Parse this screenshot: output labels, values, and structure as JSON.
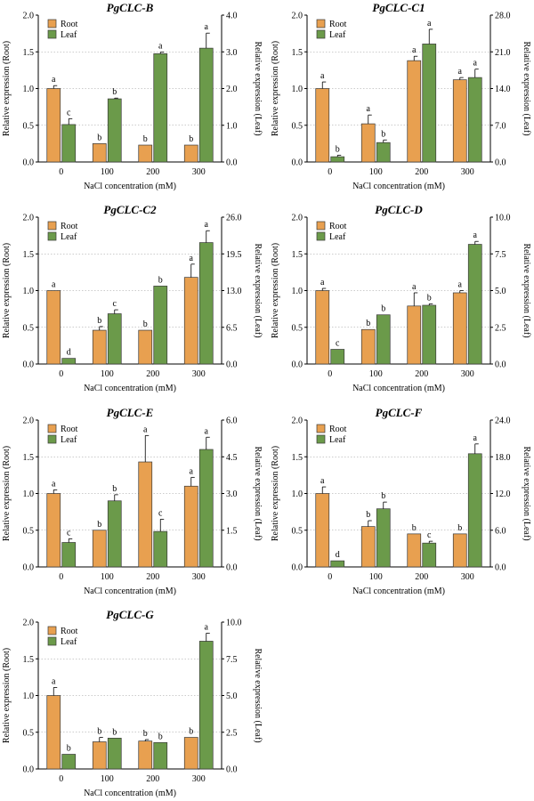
{
  "chart_data": [
    {
      "type": "bar",
      "title": "PgCLC-B",
      "categories": [
        "0",
        "100",
        "200",
        "300"
      ],
      "xlabel": "NaCl concentration (mM)",
      "ylabel_left": "Relative expression (Root)",
      "ylabel_right": "Relative expression (Leaf)",
      "left_ticks": [
        "0.0",
        "0.5",
        "1.0",
        "1.5",
        "2.0"
      ],
      "right_ticks": [
        "0.0",
        "1.0",
        "2.0",
        "3.0",
        "4.0"
      ],
      "ylim_left": [
        0,
        2.0
      ],
      "ylim_right": [
        0,
        4.0
      ],
      "series": [
        {
          "name": "Root",
          "axis": "left",
          "color": "#E8A050",
          "values": [
            1.0,
            0.25,
            0.23,
            0.23
          ],
          "errors": [
            0.04,
            0.0,
            0.0,
            0.0
          ],
          "letters": [
            "a",
            "b",
            "b",
            "b"
          ]
        },
        {
          "name": "Leaf",
          "axis": "right",
          "color": "#6B9A4A",
          "values": [
            1.02,
            1.72,
            2.95,
            3.1
          ],
          "errors": [
            0.16,
            0.02,
            0.04,
            0.41
          ],
          "letters": [
            "c",
            "b",
            "a",
            "a"
          ]
        }
      ]
    },
    {
      "type": "bar",
      "title": "PgCLC-C1",
      "categories": [
        "0",
        "100",
        "200",
        "300"
      ],
      "xlabel": "NaCl concentration (mM)",
      "ylabel_left": "Relative expression (Root)",
      "ylabel_right": "Relative expression (Leaf)",
      "left_ticks": [
        "0.0",
        "0.5",
        "1.0",
        "1.5",
        "2.0"
      ],
      "right_ticks": [
        "0.0",
        "7.0",
        "14.0",
        "21.0",
        "28.0"
      ],
      "ylim_left": [
        0,
        2.0
      ],
      "ylim_right": [
        0,
        28.0
      ],
      "series": [
        {
          "name": "Root",
          "axis": "left",
          "color": "#E8A050",
          "values": [
            1.0,
            0.52,
            1.38,
            1.12
          ],
          "errors": [
            0.09,
            0.12,
            0.06,
            0.03
          ],
          "letters": [
            "a",
            "a",
            "a",
            "a"
          ]
        },
        {
          "name": "Leaf",
          "axis": "right",
          "color": "#6B9A4A",
          "values": [
            1.0,
            3.7,
            22.5,
            16.1
          ],
          "errors": [
            0.3,
            0.5,
            2.8,
            1.6
          ],
          "letters": [
            "b",
            "b",
            "a",
            "a"
          ]
        }
      ]
    },
    {
      "type": "bar",
      "title": "PgCLC-C2",
      "categories": [
        "0",
        "100",
        "200",
        "300"
      ],
      "xlabel": "NaCl concentration (mM)",
      "ylabel_left": "Relative expression (Root)",
      "ylabel_right": "Relative expression (Leaf)",
      "left_ticks": [
        "0.0",
        "0.5",
        "1.0",
        "1.5",
        "2.0"
      ],
      "right_ticks": [
        "0.0",
        "6.5",
        "13.0",
        "19.5",
        "26.0"
      ],
      "ylim_left": [
        0,
        2.0
      ],
      "ylim_right": [
        0,
        26.0
      ],
      "series": [
        {
          "name": "Root",
          "axis": "left",
          "color": "#E8A050",
          "values": [
            1.0,
            0.46,
            0.46,
            1.18
          ],
          "errors": [
            0.0,
            0.05,
            0.0,
            0.18
          ],
          "letters": [
            "a",
            "b",
            "b",
            "a"
          ]
        },
        {
          "name": "Leaf",
          "axis": "right",
          "color": "#6B9A4A",
          "values": [
            1.0,
            8.9,
            13.8,
            21.5
          ],
          "errors": [
            0.0,
            0.7,
            0.0,
            2.1
          ],
          "letters": [
            "d",
            "c",
            "b",
            "a"
          ]
        }
      ]
    },
    {
      "type": "bar",
      "title": "PgCLC-D",
      "categories": [
        "0",
        "100",
        "200",
        "300"
      ],
      "xlabel": "NaCl concentration (mM)",
      "ylabel_left": "Relative expression (Root)",
      "ylabel_right": "Relative expression (Leaf)",
      "left_ticks": [
        "0.0",
        "0.5",
        "1.0",
        "1.5",
        "2.0"
      ],
      "right_ticks": [
        "0.0",
        "2.5",
        "5.0",
        "7.5",
        "10.0"
      ],
      "ylim_left": [
        0,
        2.0
      ],
      "ylim_right": [
        0,
        10.0
      ],
      "series": [
        {
          "name": "Root",
          "axis": "left",
          "color": "#E8A050",
          "values": [
            1.0,
            0.47,
            0.79,
            0.97
          ],
          "errors": [
            0.03,
            0.0,
            0.18,
            0.03
          ],
          "letters": [
            "a",
            "b",
            "a",
            "a"
          ]
        },
        {
          "name": "Leaf",
          "axis": "right",
          "color": "#6B9A4A",
          "values": [
            1.0,
            3.35,
            4.0,
            8.15
          ],
          "errors": [
            0.0,
            0.0,
            0.1,
            0.2
          ],
          "letters": [
            "c",
            "b",
            "b",
            "a"
          ]
        }
      ]
    },
    {
      "type": "bar",
      "title": "PgCLC-E",
      "categories": [
        "0",
        "100",
        "200",
        "300"
      ],
      "xlabel": "NaCl concentration (mM)",
      "ylabel_left": "Relative expression (Root)",
      "ylabel_right": "Relative expression (Leaf)",
      "left_ticks": [
        "0.0",
        "0.5",
        "1.0",
        "1.5",
        "2.0"
      ],
      "right_ticks": [
        "0.0",
        "1.5",
        "3.0",
        "4.5",
        "6.0"
      ],
      "ylim_left": [
        0,
        2.0
      ],
      "ylim_right": [
        0,
        6.0
      ],
      "series": [
        {
          "name": "Root",
          "axis": "left",
          "color": "#E8A050",
          "values": [
            1.0,
            0.5,
            1.43,
            1.1
          ],
          "errors": [
            0.05,
            0.0,
            0.36,
            0.12
          ],
          "letters": [
            "a",
            "b",
            "a",
            "a"
          ]
        },
        {
          "name": "Leaf",
          "axis": "right",
          "color": "#6B9A4A",
          "values": [
            1.0,
            2.7,
            1.45,
            4.8
          ],
          "errors": [
            0.15,
            0.25,
            0.5,
            0.5
          ],
          "letters": [
            "c",
            "b",
            "c",
            "a"
          ]
        }
      ]
    },
    {
      "type": "bar",
      "title": "PgCLC-F",
      "categories": [
        "0",
        "100",
        "200",
        "300"
      ],
      "xlabel": "NaCl concentration (mM)",
      "ylabel_left": "Relative expression (Root)",
      "ylabel_right": "Relative expression (Leaf)",
      "left_ticks": [
        "0.0",
        "0.5",
        "1.0",
        "1.5",
        "2.0"
      ],
      "right_ticks": [
        "0.0",
        "6.0",
        "12.0",
        "18.0",
        "24.0"
      ],
      "ylim_left": [
        0,
        2.0
      ],
      "ylim_right": [
        0,
        24.0
      ],
      "series": [
        {
          "name": "Root",
          "axis": "left",
          "color": "#E8A050",
          "values": [
            1.0,
            0.55,
            0.45,
            0.45
          ],
          "errors": [
            0.09,
            0.08,
            0.0,
            0.0
          ],
          "letters": [
            "a",
            "b",
            "b",
            "b"
          ]
        },
        {
          "name": "Leaf",
          "axis": "right",
          "color": "#6B9A4A",
          "values": [
            1.0,
            9.5,
            3.9,
            18.5
          ],
          "errors": [
            0.0,
            1.1,
            0.3,
            1.6
          ],
          "letters": [
            "d",
            "b",
            "c",
            "a"
          ]
        }
      ]
    },
    {
      "type": "bar",
      "title": "PgCLC-G",
      "categories": [
        "0",
        "100",
        "200",
        "300"
      ],
      "xlabel": "NaCl concentration (mM)",
      "ylabel_left": "Relative expression (Root)",
      "ylabel_right": "Relative expression (Leaf)",
      "left_ticks": [
        "0.0",
        "0.5",
        "1.0",
        "1.5",
        "2.0"
      ],
      "right_ticks": [
        "0.0",
        "2.5",
        "5.0",
        "7.5",
        "10.0"
      ],
      "ylim_left": [
        0,
        2.0
      ],
      "ylim_right": [
        0,
        10.0
      ],
      "series": [
        {
          "name": "Root",
          "axis": "left",
          "color": "#E8A050",
          "values": [
            1.0,
            0.37,
            0.38,
            0.43
          ],
          "errors": [
            0.11,
            0.06,
            0.02,
            0.0
          ],
          "letters": [
            "a",
            "b",
            "b",
            "b"
          ]
        },
        {
          "name": "Leaf",
          "axis": "right",
          "color": "#6B9A4A",
          "values": [
            1.0,
            2.1,
            1.8,
            8.7
          ],
          "errors": [
            0.0,
            0.0,
            0.0,
            0.55
          ],
          "letters": [
            "b",
            "b",
            "b",
            "a"
          ]
        }
      ]
    }
  ]
}
